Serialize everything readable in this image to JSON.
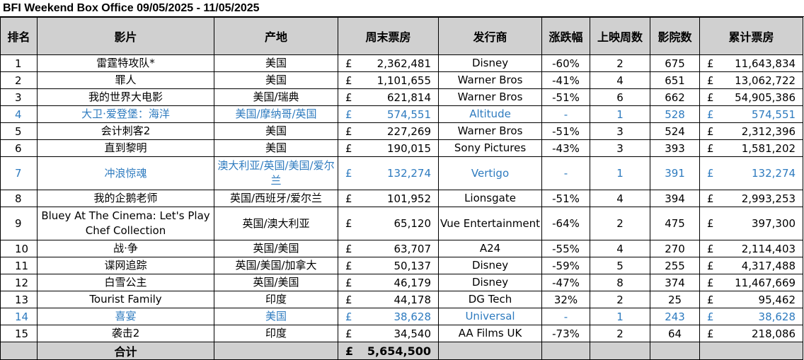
{
  "title": "BFI Weekend Box Office 09/05/2025 - 11/05/2025",
  "currency": "£",
  "headers": {
    "rank": "排名",
    "film": "影片",
    "country": "产地",
    "weekend_gross": "周末票房",
    "distributor": "发行商",
    "change": "涨跌幅",
    "weeks": "上映周数",
    "cinemas": "影院数",
    "total_gross": "累计票房"
  },
  "rows": [
    {
      "rank": "1",
      "film": "雷霆特攻队*",
      "country": "美国",
      "weekend": "2,362,481",
      "distributor": "Disney",
      "change": "-60%",
      "weeks": "2",
      "cinemas": "675",
      "total": "11,643,834",
      "new": false
    },
    {
      "rank": "2",
      "film": "罪人",
      "country": "美国",
      "weekend": "1,101,655",
      "distributor": "Warner Bros",
      "change": "-41%",
      "weeks": "4",
      "cinemas": "651",
      "total": "13,062,722",
      "new": false
    },
    {
      "rank": "3",
      "film": "我的世界大电影",
      "country": "美国/瑞典",
      "weekend": "621,814",
      "distributor": "Warner Bros",
      "change": "-51%",
      "weeks": "6",
      "cinemas": "662",
      "total": "54,905,386",
      "new": false
    },
    {
      "rank": "4",
      "film": "大卫·爱登堡：海洋",
      "country": "美国/摩纳哥/英国",
      "weekend": "574,551",
      "distributor": "Altitude",
      "change": "-",
      "weeks": "1",
      "cinemas": "528",
      "total": "574,551",
      "new": true
    },
    {
      "rank": "5",
      "film": "会计刺客2",
      "country": "美国",
      "weekend": "227,269",
      "distributor": "Warner Bros",
      "change": "-51%",
      "weeks": "3",
      "cinemas": "524",
      "total": "2,312,396",
      "new": false
    },
    {
      "rank": "6",
      "film": "直到黎明",
      "country": "美国",
      "weekend": "190,015",
      "distributor": "Sony Pictures",
      "change": "-43%",
      "weeks": "3",
      "cinemas": "393",
      "total": "1,581,202",
      "new": false
    },
    {
      "rank": "7",
      "film": "冲浪惊魂",
      "country": "澳大利亚/英国/美国/爱尔兰",
      "weekend": "132,274",
      "distributor": "Vertigo",
      "change": "-",
      "weeks": "1",
      "cinemas": "391",
      "total": "132,274",
      "new": true,
      "tall": true
    },
    {
      "rank": "8",
      "film": "我的企鹅老师",
      "country": "英国/西班牙/爱尔兰",
      "weekend": "101,952",
      "distributor": "Lionsgate",
      "change": "-51%",
      "weeks": "4",
      "cinemas": "394",
      "total": "2,993,253",
      "new": false
    },
    {
      "rank": "9",
      "film": "Bluey At The Cinema: Let's Play Chef Collection",
      "country": "英国/澳大利亚",
      "weekend": "65,120",
      "distributor": "Vue Entertainment",
      "change": "-64%",
      "weeks": "2",
      "cinemas": "475",
      "total": "397,300",
      "new": false,
      "tall": true
    },
    {
      "rank": "10",
      "film": "战·争",
      "country": "英国/美国",
      "weekend": "63,707",
      "distributor": "A24",
      "change": "-55%",
      "weeks": "4",
      "cinemas": "270",
      "total": "2,114,403",
      "new": false
    },
    {
      "rank": "11",
      "film": "谍网追踪",
      "country": "英国/美国/加拿大",
      "weekend": "50,137",
      "distributor": "Disney",
      "change": "-59%",
      "weeks": "5",
      "cinemas": "255",
      "total": "4,317,488",
      "new": false
    },
    {
      "rank": "12",
      "film": "白雪公主",
      "country": "英国/美国",
      "weekend": "46,179",
      "distributor": "Disney",
      "change": "-47%",
      "weeks": "8",
      "cinemas": "374",
      "total": "11,467,669",
      "new": false
    },
    {
      "rank": "13",
      "film": "Tourist Family",
      "country": "印度",
      "weekend": "44,178",
      "distributor": "DG Tech",
      "change": "32%",
      "weeks": "2",
      "cinemas": "25",
      "total": "95,462",
      "new": false
    },
    {
      "rank": "14",
      "film": "喜宴",
      "country": "美国",
      "weekend": "38,628",
      "distributor": "Universal",
      "change": "-",
      "weeks": "1",
      "cinemas": "243",
      "total": "38,628",
      "new": true
    },
    {
      "rank": "15",
      "film": "袭击2",
      "country": "印度",
      "weekend": "34,540",
      "distributor": "AA Films UK",
      "change": "-73%",
      "weeks": "2",
      "cinemas": "64",
      "total": "218,086",
      "new": false
    }
  ],
  "footer": {
    "label": "合计",
    "currency": "£",
    "total_weekend": "5,654,500"
  },
  "colors": {
    "header_bg": "#d0d0d0",
    "new_release_text": "#2e7bbf"
  }
}
